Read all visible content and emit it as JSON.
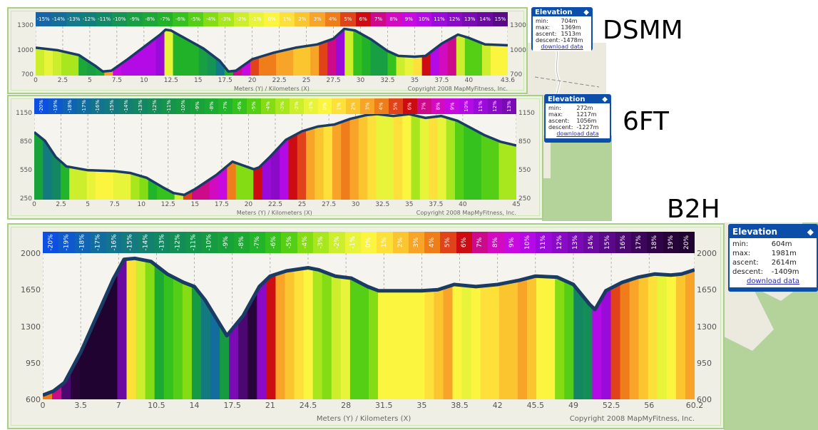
{
  "charts": [
    {
      "id": "dsmm",
      "route_label": "DSMM",
      "x_axis_title": "Meters (Y) / Kilometers (X)",
      "copyright": "Copyright 2008 MapMyFitness, Inc.",
      "legend_orientation": "horizontal",
      "legend": [
        {
          "label": "-15%",
          "color": "#1565a8"
        },
        {
          "label": "-14%",
          "color": "#136f9a"
        },
        {
          "label": "-13%",
          "color": "#127a8a"
        },
        {
          "label": "-12%",
          "color": "#11807a"
        },
        {
          "label": "-11%",
          "color": "#118a68"
        },
        {
          "label": "-10%",
          "color": "#149455"
        },
        {
          "label": "-9%",
          "color": "#189f44"
        },
        {
          "label": "-8%",
          "color": "#1ca838"
        },
        {
          "label": "-7%",
          "color": "#22b22a"
        },
        {
          "label": "-6%",
          "color": "#35c21e"
        },
        {
          "label": "-5%",
          "color": "#55cf16"
        },
        {
          "label": "-4%",
          "color": "#84dc14"
        },
        {
          "label": "-3%",
          "color": "#a8e61e"
        },
        {
          "label": "-2%",
          "color": "#ccee2c"
        },
        {
          "label": "-1%",
          "color": "#e8f43a"
        },
        {
          "label": "0%",
          "color": "#fbf540"
        },
        {
          "label": "1%",
          "color": "#fde03a"
        },
        {
          "label": "2%",
          "color": "#fbc530"
        },
        {
          "label": "3%",
          "color": "#f8a428"
        },
        {
          "label": "4%",
          "color": "#ef7d1a"
        },
        {
          "label": "5%",
          "color": "#e0431a"
        },
        {
          "label": "6%",
          "color": "#cc0c12"
        },
        {
          "label": "7%",
          "color": "#cc0a8a"
        },
        {
          "label": "8%",
          "color": "#d20ac0"
        },
        {
          "label": "9%",
          "color": "#c70ae0"
        },
        {
          "label": "10%",
          "color": "#b30ae6"
        },
        {
          "label": "11%",
          "color": "#9a0ad8"
        },
        {
          "label": "12%",
          "color": "#8a0ac8"
        },
        {
          "label": "13%",
          "color": "#7a0ab4"
        },
        {
          "label": "14%",
          "color": "#6a0aa0"
        },
        {
          "label": "15%",
          "color": "#5a0a88"
        }
      ],
      "popup": {
        "title": "Elevation",
        "min_label": "min:",
        "min": "704m",
        "max_label": "max:",
        "max": "1369m",
        "ascent_label": "ascent:",
        "ascent": "1513m",
        "descent_label": "descent:",
        "descent": "-1478m",
        "download": "download data"
      },
      "chart_data": {
        "type": "area",
        "title": "DSMM elevation profile",
        "xlabel": "Kilometers (X)",
        "ylabel": "Meters (Y)",
        "ylim": [
          700,
          1300
        ],
        "xlim": [
          0,
          43.6
        ],
        "yticks": [
          700,
          1000,
          1300
        ],
        "xticks": [
          "0",
          "2.5",
          "5",
          "7.5",
          "10",
          "12.5",
          "15",
          "17.5",
          "20",
          "22.5",
          "25",
          "27.5",
          "30",
          "32.5",
          "35",
          "37.5",
          "40",
          "43.6"
        ],
        "x": [
          0,
          2,
          4,
          5.5,
          6.2,
          7,
          8.5,
          10,
          11.5,
          12,
          12.5,
          14,
          15.5,
          17,
          17.8,
          18.5,
          20,
          22,
          24,
          26,
          27.5,
          28.5,
          29.5,
          31,
          32.5,
          33.5,
          35,
          36,
          37.5,
          39,
          40,
          41.5,
          43.6
        ],
        "y": [
          1040,
          1010,
          950,
          820,
          750,
          760,
          900,
          1050,
          1200,
          1260,
          1250,
          1140,
          1030,
          880,
          750,
          760,
          900,
          980,
          1040,
          1080,
          1150,
          1270,
          1250,
          1140,
          1000,
          940,
          930,
          940,
          1090,
          1200,
          1160,
          1080,
          1070
        ]
      }
    },
    {
      "id": "6ft",
      "route_label": "6FT",
      "x_axis_title": "Meters (Y) / Kilometers (X)",
      "copyright": "Copyright 2008 MapMyFitness, Inc.",
      "legend_orientation": "vertical",
      "legend": [
        {
          "label": "-20%",
          "color": "#0d4fe0"
        },
        {
          "label": "-19%",
          "color": "#0f59cc"
        },
        {
          "label": "-18%",
          "color": "#1163b4"
        },
        {
          "label": "-17%",
          "color": "#126c9e"
        },
        {
          "label": "-16%",
          "color": "#13748e"
        },
        {
          "label": "-15%",
          "color": "#137a80"
        },
        {
          "label": "-14%",
          "color": "#138070"
        },
        {
          "label": "-13%",
          "color": "#138762"
        },
        {
          "label": "-12%",
          "color": "#148e56"
        },
        {
          "label": "-11%",
          "color": "#15944c"
        },
        {
          "label": "-10%",
          "color": "#169a42"
        },
        {
          "label": "-9%",
          "color": "#18a23a"
        },
        {
          "label": "-8%",
          "color": "#1caa32"
        },
        {
          "label": "-7%",
          "color": "#22b42a"
        },
        {
          "label": "-6%",
          "color": "#35c21e"
        },
        {
          "label": "-5%",
          "color": "#55cf16"
        },
        {
          "label": "-4%",
          "color": "#84dc14"
        },
        {
          "label": "-3%",
          "color": "#a8e61e"
        },
        {
          "label": "-2%",
          "color": "#ccee2c"
        },
        {
          "label": "-1%",
          "color": "#e8f43a"
        },
        {
          "label": "0%",
          "color": "#fbf540"
        },
        {
          "label": "1%",
          "color": "#fde03a"
        },
        {
          "label": "2%",
          "color": "#fbc530"
        },
        {
          "label": "3%",
          "color": "#f8a428"
        },
        {
          "label": "4%",
          "color": "#ef7d1a"
        },
        {
          "label": "5%",
          "color": "#e0431a"
        },
        {
          "label": "6%",
          "color": "#cc0c12"
        },
        {
          "label": "7%",
          "color": "#cc0a8a"
        },
        {
          "label": "8%",
          "color": "#d20ac0"
        },
        {
          "label": "9%",
          "color": "#c70ae0"
        },
        {
          "label": "10%",
          "color": "#b30ae6"
        },
        {
          "label": "11%",
          "color": "#9a0ad8"
        },
        {
          "label": "12%",
          "color": "#8a0ac8"
        },
        {
          "label": "13%",
          "color": "#7a0ab4"
        }
      ],
      "popup": {
        "title": "Elevation",
        "min_label": "min:",
        "min": "272m",
        "max_label": "max:",
        "max": "1217m",
        "ascent_label": "ascent:",
        "ascent": "1056m",
        "descent_label": "descent:",
        "descent": "-1227m",
        "download": "download data"
      },
      "chart_data": {
        "type": "area",
        "title": "6FT elevation profile",
        "xlabel": "Kilometers (X)",
        "ylabel": "Meters (Y)",
        "ylim": [
          250,
          1150
        ],
        "xlim": [
          0,
          45
        ],
        "yticks": [
          250,
          550,
          850,
          1150
        ],
        "xticks": [
          "0",
          "2.5",
          "5",
          "7.5",
          "10",
          "12.5",
          "15",
          "17.5",
          "20",
          "22.5",
          "25",
          "27.5",
          "30",
          "32.5",
          "35",
          "37.5",
          "40",
          "45"
        ],
        "x": [
          0,
          1,
          2,
          3,
          5,
          7.5,
          9,
          10.5,
          12,
          13,
          14,
          15,
          17,
          18.5,
          19.5,
          20.5,
          21,
          22,
          23.5,
          25,
          26.5,
          28,
          29.5,
          31,
          32,
          33.5,
          35,
          36.5,
          38,
          39.5,
          40.5,
          42,
          43.5,
          45
        ],
        "y": [
          960,
          870,
          700,
          600,
          560,
          550,
          530,
          480,
          380,
          320,
          300,
          360,
          510,
          650,
          610,
          570,
          590,
          700,
          880,
          970,
          1020,
          1040,
          1100,
          1140,
          1150,
          1130,
          1150,
          1110,
          1130,
          1080,
          1020,
          930,
          860,
          820
        ]
      }
    },
    {
      "id": "b2h",
      "route_label": "B2H",
      "x_axis_title": "Meters (Y) / Kilometers (X)",
      "copyright": "Copyright 2008 MapMyFitness, Inc.",
      "legend_orientation": "vertical",
      "legend": [
        {
          "label": "-20%",
          "color": "#0d4fe0"
        },
        {
          "label": "-19%",
          "color": "#0f59cc"
        },
        {
          "label": "-18%",
          "color": "#1163b4"
        },
        {
          "label": "-17%",
          "color": "#126c9e"
        },
        {
          "label": "-16%",
          "color": "#13748e"
        },
        {
          "label": "-15%",
          "color": "#137a80"
        },
        {
          "label": "-14%",
          "color": "#138070"
        },
        {
          "label": "-13%",
          "color": "#138762"
        },
        {
          "label": "-12%",
          "color": "#148e56"
        },
        {
          "label": "-11%",
          "color": "#15944c"
        },
        {
          "label": "-10%",
          "color": "#169a42"
        },
        {
          "label": "-9%",
          "color": "#18a23a"
        },
        {
          "label": "-8%",
          "color": "#1caa32"
        },
        {
          "label": "-7%",
          "color": "#22b42a"
        },
        {
          "label": "-6%",
          "color": "#35c21e"
        },
        {
          "label": "-5%",
          "color": "#55cf16"
        },
        {
          "label": "-4%",
          "color": "#84dc14"
        },
        {
          "label": "-3%",
          "color": "#a8e61e"
        },
        {
          "label": "-2%",
          "color": "#ccee2c"
        },
        {
          "label": "-1%",
          "color": "#e8f43a"
        },
        {
          "label": "0%",
          "color": "#fbf540"
        },
        {
          "label": "1%",
          "color": "#fde03a"
        },
        {
          "label": "2%",
          "color": "#fbc530"
        },
        {
          "label": "3%",
          "color": "#f8a428"
        },
        {
          "label": "4%",
          "color": "#ef7d1a"
        },
        {
          "label": "5%",
          "color": "#e0431a"
        },
        {
          "label": "6%",
          "color": "#cc0c12"
        },
        {
          "label": "7%",
          "color": "#cc0a8a"
        },
        {
          "label": "8%",
          "color": "#d20ac0"
        },
        {
          "label": "9%",
          "color": "#c70ae0"
        },
        {
          "label": "10%",
          "color": "#b30ae6"
        },
        {
          "label": "11%",
          "color": "#9a0ad8"
        },
        {
          "label": "12%",
          "color": "#8a0ac8"
        },
        {
          "label": "13%",
          "color": "#7a0ab4"
        },
        {
          "label": "14%",
          "color": "#6a0aa0"
        },
        {
          "label": "15%",
          "color": "#5a0a88"
        },
        {
          "label": "16%",
          "color": "#4a0870"
        },
        {
          "label": "17%",
          "color": "#3c065a"
        },
        {
          "label": "18%",
          "color": "#300548"
        },
        {
          "label": "19%",
          "color": "#280438"
        },
        {
          "label": "20%",
          "color": "#200330"
        }
      ],
      "popup": {
        "title": "Elevation",
        "min_label": "min:",
        "min": "604m",
        "max_label": "max:",
        "max": "1981m",
        "ascent_label": "ascent:",
        "ascent": "2614m",
        "descent_label": "descent:",
        "descent": "-1409m",
        "download": "download data"
      },
      "chart_data": {
        "type": "area",
        "title": "B2H elevation profile",
        "xlabel": "Kilometers (X)",
        "ylabel": "Meters (Y)",
        "ylim": [
          600,
          2000
        ],
        "xlim": [
          0,
          60.2
        ],
        "yticks": [
          600,
          950,
          1300,
          1650,
          2000
        ],
        "xticks": [
          "0",
          "3.5",
          "7",
          "10.5",
          "14",
          "17.5",
          "21",
          "24.5",
          "28",
          "31.5",
          "35",
          "38.5",
          "42",
          "45.5",
          "49",
          "52.5",
          "56",
          "60.2"
        ],
        "x": [
          0,
          1,
          2,
          3.5,
          5,
          6.5,
          7.5,
          8.5,
          10,
          11.5,
          13,
          14,
          15,
          16,
          17,
          18.5,
          20,
          21,
          22.5,
          24.5,
          25.5,
          27,
          28.5,
          30,
          31,
          33,
          35,
          36.5,
          38,
          40,
          42,
          44,
          45.5,
          47.5,
          49,
          50.5,
          51,
          52,
          53.5,
          55,
          56.5,
          58,
          59,
          60.2
        ],
        "y": [
          640,
          680,
          760,
          1050,
          1400,
          1750,
          1940,
          1950,
          1920,
          1800,
          1720,
          1680,
          1550,
          1380,
          1210,
          1400,
          1680,
          1780,
          1830,
          1860,
          1840,
          1780,
          1760,
          1680,
          1640,
          1640,
          1640,
          1650,
          1700,
          1680,
          1700,
          1740,
          1780,
          1770,
          1700,
          1510,
          1460,
          1640,
          1720,
          1770,
          1800,
          1790,
          1800,
          1840
        ]
      }
    }
  ]
}
